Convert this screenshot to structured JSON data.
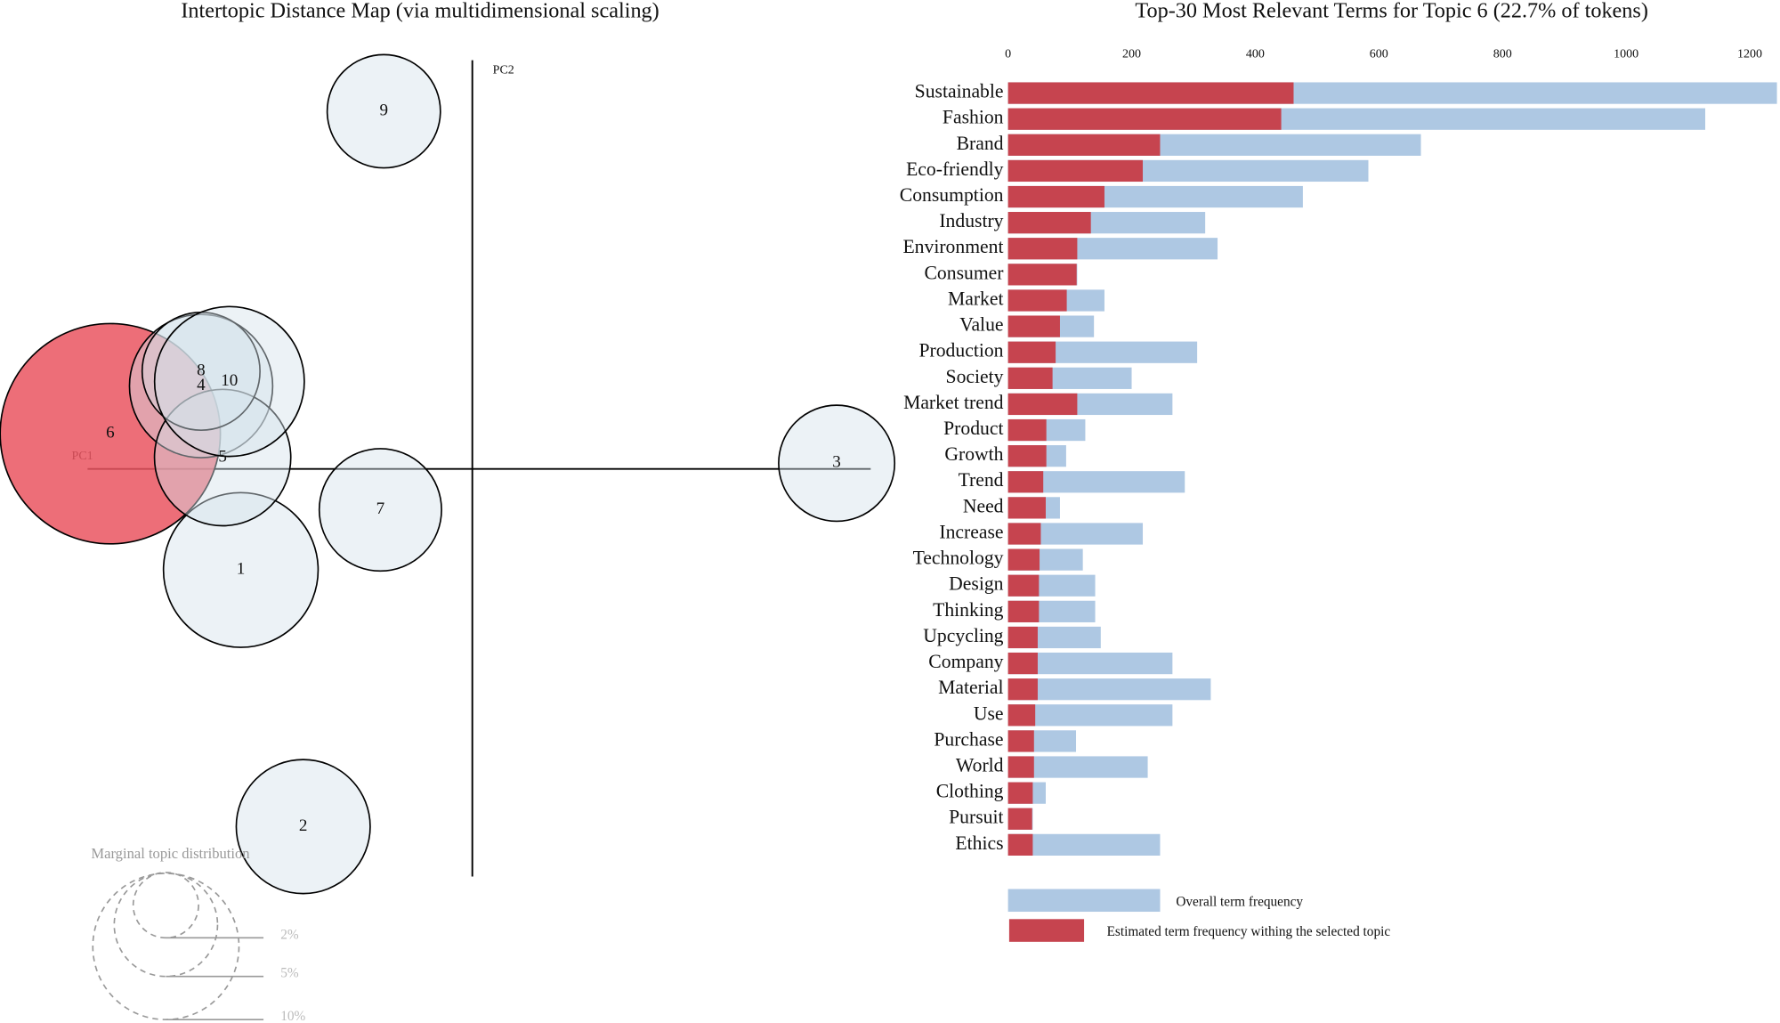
{
  "chart_data": [
    {
      "type": "scatter",
      "title": "Intertopic Distance Map (via multidimensional scaling)",
      "xlabel": "PC1",
      "ylabel": "PC2",
      "xlim": [
        -0.339,
        0.351
      ],
      "ylim": [
        -0.359,
        0.36
      ],
      "labels": [
        "1",
        "2",
        "3",
        "4",
        "5",
        "6",
        "7",
        "8",
        "9",
        "10"
      ],
      "x": [
        -0.204,
        -0.149,
        0.321,
        -0.239,
        -0.22,
        -0.319,
        -0.081,
        -0.239,
        -0.078,
        -0.214
      ],
      "y": [
        -0.089,
        -0.315,
        0.005,
        0.073,
        0.01,
        0.031,
        -0.036,
        0.086,
        0.315,
        0.077
      ],
      "size": [
        11.2,
        8.4,
        6.3,
        9.6,
        8.7,
        22.7,
        7.0,
        6.5,
        6.0,
        10.5
      ],
      "color": "#d5e2ec",
      "highlight_color": "#ea5560",
      "highlight": "6",
      "legend_title": "Marginal topic distribution",
      "legend_sizes": [
        {
          "value": 2,
          "label": "2%"
        },
        {
          "value": 5,
          "label": "5%"
        },
        {
          "value": 10,
          "label": "10%"
        }
      ]
    },
    {
      "type": "bar",
      "orientation": "horizontal",
      "title": "Top-30 Most Relevant Terms for Topic 6 (22.7% of tokens)",
      "categories": [
        "Sustainable",
        "Fashion",
        "Brand",
        "Eco-friendly",
        "Consumption",
        "Industry",
        "Environment",
        "Consumer",
        "Market",
        "Value",
        "Production",
        "Society",
        "Market trend",
        "Product",
        "Growth",
        "Trend",
        "Need",
        "Increase",
        "Technology",
        "Design",
        "Thinking",
        "Upcycling",
        "Company",
        "Material",
        "Use",
        "Purchase",
        "World",
        "Clothing",
        "Pursuit",
        "Ethics"
      ],
      "series": [
        {
          "name": "Overall term frequency",
          "color": "#aec8e3",
          "values": [
            1244,
            1128,
            668,
            583,
            477,
            319,
            339,
            112,
            156,
            139,
            306,
            200,
            266,
            125,
            94,
            286,
            84,
            218,
            121,
            141,
            141,
            150,
            266,
            328,
            266,
            110,
            226,
            61,
            40,
            246
          ]
        },
        {
          "name": "Estimated term frequency withing the selected topic",
          "color": "#c6444f",
          "values": [
            462,
            442,
            246,
            218,
            156,
            134,
            112,
            111,
            95,
            84,
            77,
            72,
            112,
            62,
            62,
            57,
            61,
            53,
            51,
            50,
            50,
            48,
            48,
            48,
            44,
            42,
            42,
            40,
            39,
            40
          ]
        }
      ],
      "xlim": [
        0,
        1245
      ],
      "xticks": [
        0,
        200,
        400,
        600,
        800,
        1000,
        1200
      ]
    }
  ]
}
